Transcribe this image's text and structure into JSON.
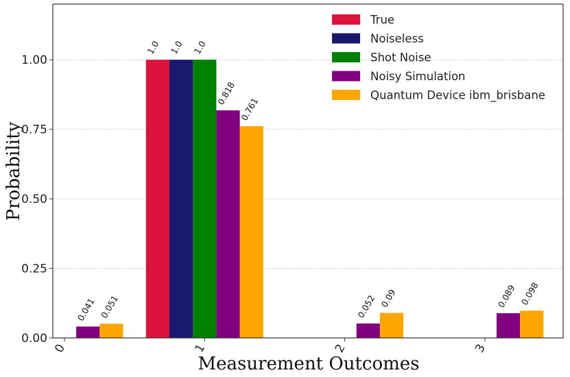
{
  "chart_data": {
    "type": "bar",
    "title": "",
    "xlabel": "Measurement Outcomes",
    "ylabel": "Probability",
    "categories": [
      "0",
      "1",
      "2",
      "3"
    ],
    "ylim": [
      0,
      1.2
    ],
    "yticks": [
      0.0,
      0.25,
      0.5,
      0.75,
      1.0
    ],
    "ytick_labels": [
      "0.00",
      "0.25",
      "0.50",
      "0.75",
      "1.00"
    ],
    "grid": true,
    "legend_position": "top-right",
    "series": [
      {
        "name": "True",
        "color": "#dc143c",
        "values": [
          0,
          1.0,
          0,
          0
        ],
        "labels": [
          "",
          "1.0",
          "",
          ""
        ]
      },
      {
        "name": "Noiseless",
        "color": "#191970",
        "values": [
          0,
          1.0,
          0,
          0
        ],
        "labels": [
          "",
          "1.0",
          "",
          ""
        ]
      },
      {
        "name": "Shot Noise",
        "color": "#008000",
        "values": [
          0,
          1.0,
          0,
          0
        ],
        "labels": [
          "",
          "1.0",
          "",
          ""
        ]
      },
      {
        "name": "Noisy Simulation",
        "color": "#800080",
        "values": [
          0.041,
          0.818,
          0.052,
          0.089
        ],
        "labels": [
          "0.041",
          "0.818",
          "0.052",
          "0.089"
        ]
      },
      {
        "name": "Quantum Device ibm_brisbane",
        "color": "#ffa500",
        "values": [
          0.051,
          0.761,
          0.09,
          0.098
        ],
        "labels": [
          "0.051",
          "0.761",
          "0.09",
          "0.098"
        ]
      }
    ]
  }
}
